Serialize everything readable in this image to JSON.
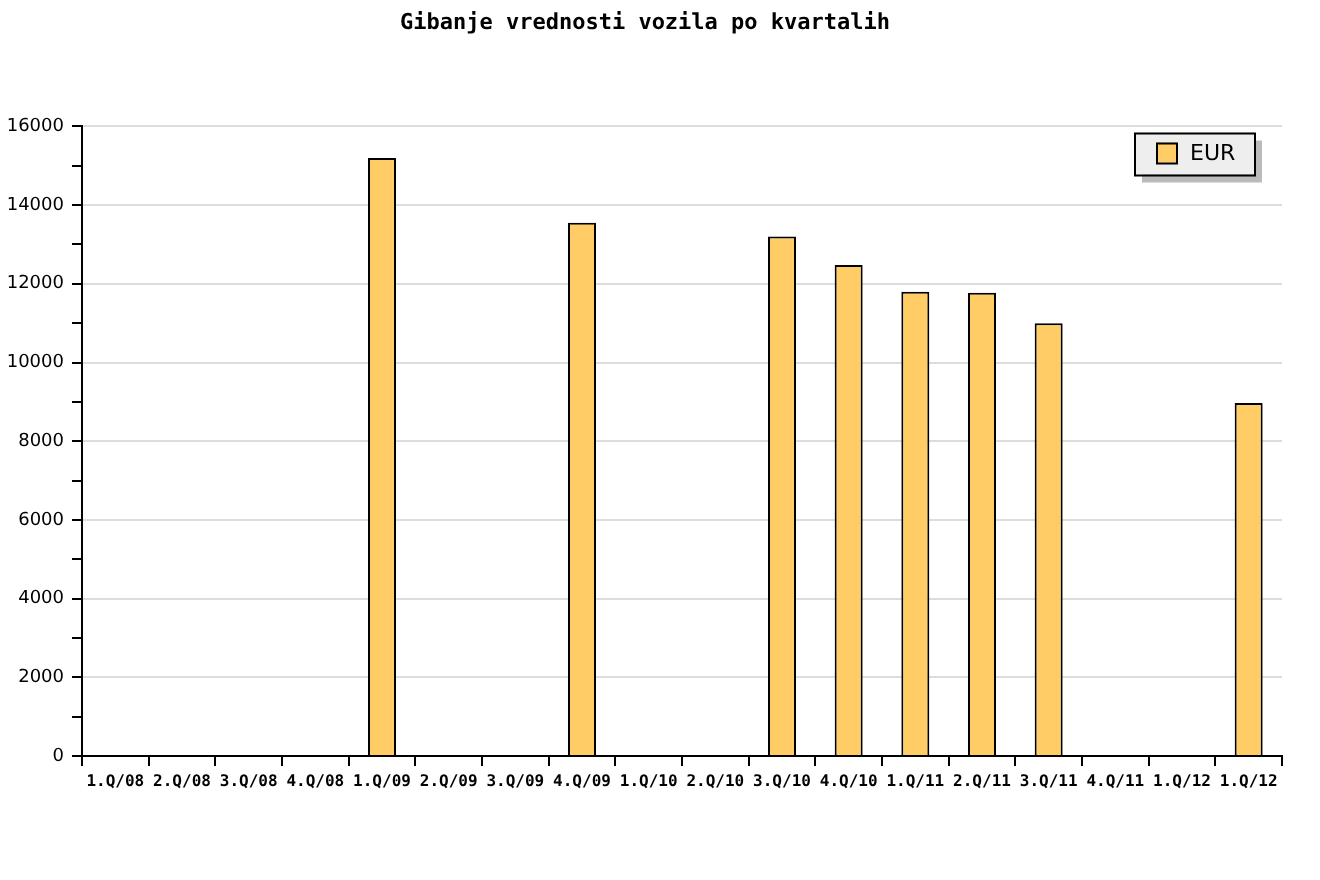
{
  "chart_data": {
    "type": "bar",
    "title": "Gibanje vrednosti vozila po kvartalih",
    "categories": [
      "1.Q/08",
      "2.Q/08",
      "3.Q/08",
      "4.Q/08",
      "1.Q/09",
      "2.Q/09",
      "3.Q/09",
      "4.Q/09",
      "1.Q/10",
      "2.Q/10",
      "3.Q/10",
      "4.Q/10",
      "1.Q/11",
      "2.Q/11",
      "3.Q/11",
      "4.Q/11",
      "1.Q/12",
      "1.Q/12"
    ],
    "series": [
      {
        "name": "EUR",
        "color": "#ffcc66",
        "values": [
          null,
          null,
          null,
          null,
          15200,
          null,
          null,
          13550,
          null,
          null,
          13200,
          12480,
          11800,
          11770,
          11000,
          null,
          null,
          8970
        ]
      }
    ],
    "ylim": [
      0,
      16000
    ],
    "yticks": [
      0,
      {
        "value": 1000,
        "label": null
      },
      2000,
      {
        "value": 3000,
        "label": null
      },
      4000,
      {
        "value": 5000,
        "label": null
      },
      6000,
      {
        "value": 7000,
        "label": null
      },
      8000,
      {
        "value": 9000,
        "label": null
      },
      10000,
      {
        "value": 11000,
        "label": null
      },
      12000,
      {
        "value": 13000,
        "label": null
      },
      14000,
      {
        "value": 15000,
        "label": null
      },
      16000
    ],
    "grid": "y",
    "legend": "top right"
  }
}
